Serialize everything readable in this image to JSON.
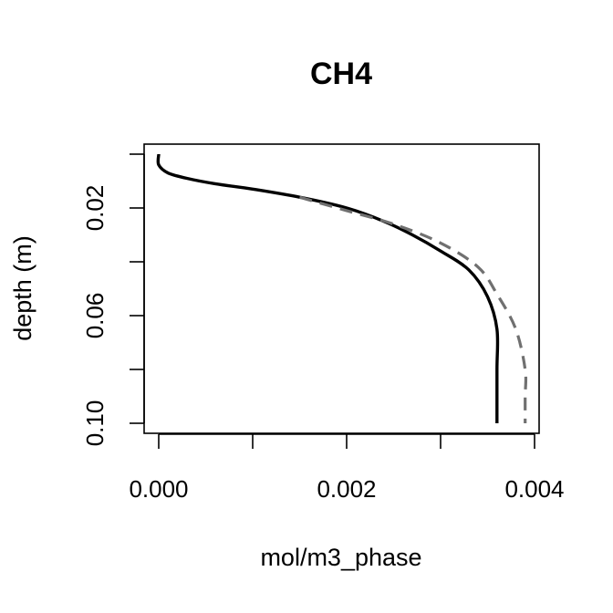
{
  "chart_data": {
    "type": "line",
    "title": "CH4",
    "xlabel": "mol/m3_phase",
    "ylabel": "depth (m)",
    "xlim": [
      0,
      0.004
    ],
    "ylim": [
      0.1,
      0.0
    ],
    "x_ticks": [
      0,
      0.001,
      0.002,
      0.003,
      0.004
    ],
    "x_tick_labels": [
      "0.000",
      "",
      "0.002",
      "",
      "0.004"
    ],
    "y_ticks": [
      0.0,
      0.02,
      0.04,
      0.06,
      0.08,
      0.1
    ],
    "y_tick_labels": [
      "",
      "0.02",
      "",
      "0.06",
      "",
      "0.10"
    ],
    "grid": false,
    "series": [
      {
        "style": "solid",
        "color": "#000000",
        "points": [
          [
            0.0,
            0.0
          ],
          [
            0.0,
            0.004
          ],
          [
            0.0001,
            0.007
          ],
          [
            0.0003,
            0.009
          ],
          [
            0.0006,
            0.011
          ],
          [
            0.001,
            0.013
          ],
          [
            0.0015,
            0.016
          ],
          [
            0.002,
            0.02
          ],
          [
            0.0024,
            0.025
          ],
          [
            0.0027,
            0.03
          ],
          [
            0.003,
            0.036
          ],
          [
            0.0033,
            0.043
          ],
          [
            0.0035,
            0.053
          ],
          [
            0.0036,
            0.065
          ],
          [
            0.0036,
            0.08
          ],
          [
            0.0036,
            0.1
          ]
        ]
      },
      {
        "style": "dashed",
        "color": "#707070",
        "points": [
          [
            0.0015,
            0.016
          ],
          [
            0.002,
            0.021
          ],
          [
            0.0025,
            0.026
          ],
          [
            0.003,
            0.033
          ],
          [
            0.0034,
            0.042
          ],
          [
            0.0036,
            0.052
          ],
          [
            0.0038,
            0.065
          ],
          [
            0.0039,
            0.08
          ],
          [
            0.0039,
            0.09
          ],
          [
            0.0039,
            0.1
          ]
        ]
      }
    ]
  }
}
